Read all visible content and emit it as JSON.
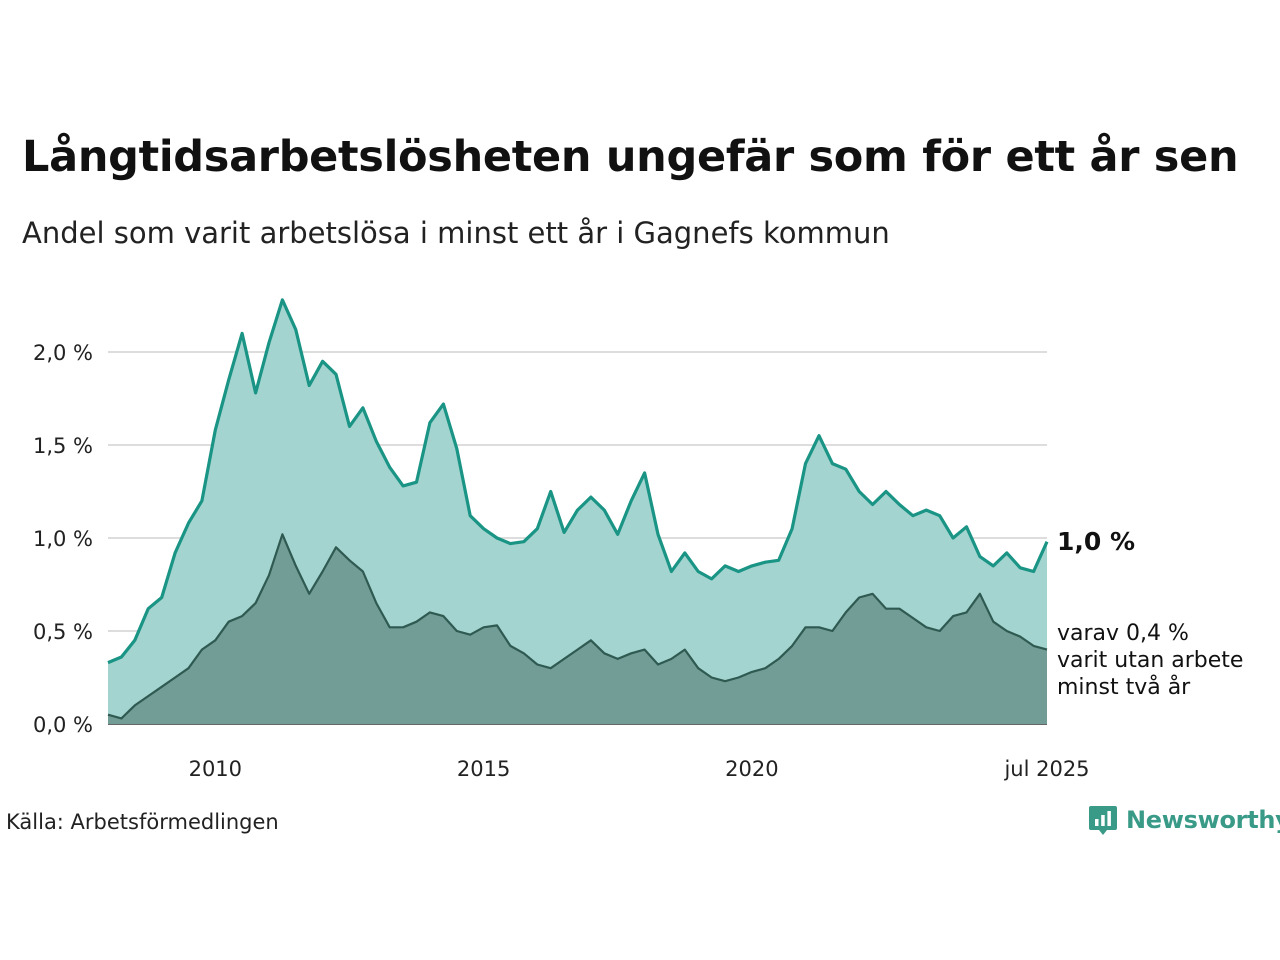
{
  "title": "Långtidsarbetslösheten ungefär som för ett år sen",
  "subtitle": "Andel som varit arbetslösa i minst ett år i Gagnefs kommun",
  "source": "Källa: Arbetsförmedlingen",
  "logo_text": "Newsworthy",
  "colors": {
    "main_line": "#1a9485",
    "main_fill": "#a3d4cf",
    "sub_line": "#2f5a52",
    "sub_fill": "#729c96",
    "grid": "#dddddd"
  },
  "chart_data": {
    "type": "area",
    "x_range": [
      2008.0,
      2025.5
    ],
    "ylim": [
      0,
      2.3
    ],
    "y_ticks": [
      0,
      0.5,
      1.0,
      1.5,
      2.0
    ],
    "y_tick_labels": [
      "0,0 %",
      "0,5 %",
      "1,0 %",
      "1,5 %",
      "2,0 %"
    ],
    "x_ticks": [
      {
        "x": 2010.0,
        "label": "2010"
      },
      {
        "x": 2015.0,
        "label": "2015"
      },
      {
        "x": 2020.0,
        "label": "2020"
      },
      {
        "x": 2025.5,
        "label": "jul 2025"
      }
    ],
    "grid": true,
    "end_labels": {
      "main_value": "1,0 %",
      "sub_lines": [
        "varav 0,4 %",
        "varit utan arbete",
        "minst två år"
      ]
    },
    "series": [
      {
        "name": "",
        "x": [
          2008.0,
          2008.25,
          2008.5,
          2008.75,
          2009.0,
          2009.25,
          2009.5,
          2009.75,
          2010.0,
          2010.25,
          2010.5,
          2010.75,
          2011.0,
          2011.25,
          2011.5,
          2011.75,
          2012.0,
          2012.25,
          2012.5,
          2012.75,
          2013.0,
          2013.25,
          2013.5,
          2013.75,
          2014.0,
          2014.25,
          2014.5,
          2014.75,
          2015.0,
          2015.25,
          2015.5,
          2015.75,
          2016.0,
          2016.25,
          2016.5,
          2016.75,
          2017.0,
          2017.25,
          2017.5,
          2017.75,
          2018.0,
          2018.25,
          2018.5,
          2018.75,
          2019.0,
          2019.25,
          2019.5,
          2019.75,
          2020.0,
          2020.25,
          2020.5,
          2020.75,
          2021.0,
          2021.25,
          2021.5,
          2021.75,
          2022.0,
          2022.25,
          2022.5,
          2022.75,
          2023.0,
          2023.25,
          2023.5,
          2023.75,
          2024.0,
          2024.25,
          2024.5,
          2024.75,
          2025.0,
          2025.25,
          2025.5
        ],
        "values": [
          0.33,
          0.36,
          0.45,
          0.62,
          0.68,
          0.92,
          1.08,
          1.2,
          1.58,
          1.85,
          2.1,
          1.78,
          2.05,
          2.28,
          2.12,
          1.82,
          1.95,
          1.88,
          1.6,
          1.7,
          1.52,
          1.38,
          1.28,
          1.3,
          1.62,
          1.72,
          1.48,
          1.12,
          1.05,
          1.0,
          0.97,
          0.98,
          1.05,
          1.25,
          1.03,
          1.15,
          1.22,
          1.15,
          1.02,
          1.2,
          1.35,
          1.02,
          0.82,
          0.92,
          0.82,
          0.78,
          0.85,
          0.82,
          0.85,
          0.87,
          0.88,
          1.05,
          1.4,
          1.55,
          1.4,
          1.37,
          1.25,
          1.18,
          1.25,
          1.18,
          1.12,
          1.15,
          1.12,
          1.0,
          1.06,
          0.9,
          0.85,
          0.92,
          0.84,
          0.82,
          0.98
        ]
      },
      {
        "name": "",
        "x": [
          2008.0,
          2008.25,
          2008.5,
          2008.75,
          2009.0,
          2009.25,
          2009.5,
          2009.75,
          2010.0,
          2010.25,
          2010.5,
          2010.75,
          2011.0,
          2011.25,
          2011.5,
          2011.75,
          2012.0,
          2012.25,
          2012.5,
          2012.75,
          2013.0,
          2013.25,
          2013.5,
          2013.75,
          2014.0,
          2014.25,
          2014.5,
          2014.75,
          2015.0,
          2015.25,
          2015.5,
          2015.75,
          2016.0,
          2016.25,
          2016.5,
          2016.75,
          2017.0,
          2017.25,
          2017.5,
          2017.75,
          2018.0,
          2018.25,
          2018.5,
          2018.75,
          2019.0,
          2019.25,
          2019.5,
          2019.75,
          2020.0,
          2020.25,
          2020.5,
          2020.75,
          2021.0,
          2021.25,
          2021.5,
          2021.75,
          2022.0,
          2022.25,
          2022.5,
          2022.75,
          2023.0,
          2023.25,
          2023.5,
          2023.75,
          2024.0,
          2024.25,
          2024.5,
          2024.75,
          2025.0,
          2025.25,
          2025.5
        ],
        "values": [
          0.05,
          0.03,
          0.1,
          0.15,
          0.2,
          0.25,
          0.3,
          0.4,
          0.45,
          0.55,
          0.58,
          0.65,
          0.8,
          1.02,
          0.85,
          0.7,
          0.82,
          0.95,
          0.88,
          0.82,
          0.65,
          0.52,
          0.52,
          0.55,
          0.6,
          0.58,
          0.5,
          0.48,
          0.52,
          0.53,
          0.42,
          0.38,
          0.32,
          0.3,
          0.35,
          0.4,
          0.45,
          0.38,
          0.35,
          0.38,
          0.4,
          0.32,
          0.35,
          0.4,
          0.3,
          0.25,
          0.23,
          0.25,
          0.28,
          0.3,
          0.35,
          0.42,
          0.52,
          0.52,
          0.5,
          0.6,
          0.68,
          0.7,
          0.62,
          0.62,
          0.57,
          0.52,
          0.5,
          0.58,
          0.6,
          0.7,
          0.55,
          0.5,
          0.47,
          0.42,
          0.4
        ]
      }
    ]
  }
}
